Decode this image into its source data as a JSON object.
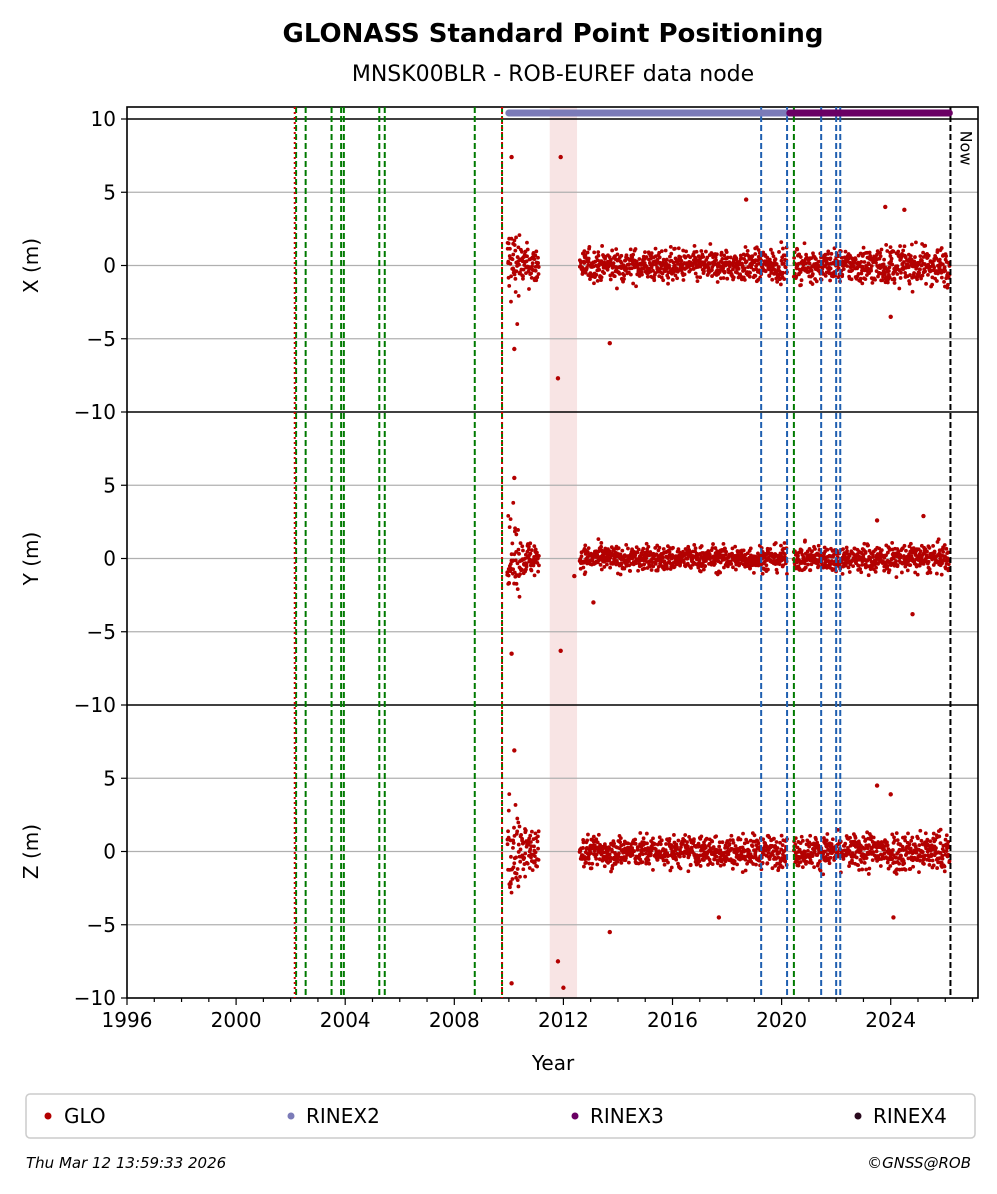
{
  "chart_data": {
    "type": "scatter",
    "title": "GLONASS Standard Point Positioning",
    "subtitle": "MNSK00BLR - ROB-EUREF data node",
    "xlabel": "Year",
    "xlim": [
      1996,
      2027.2
    ],
    "x_ticks": [
      "1996",
      "2000",
      "2004",
      "2008",
      "2012",
      "2016",
      "2020",
      "2024"
    ],
    "x_tick_values": [
      1996,
      2000,
      2004,
      2008,
      2012,
      2016,
      2020,
      2024
    ],
    "now_label": "Now",
    "now_year": 2026.19,
    "panels": [
      {
        "id": "x",
        "ylabel": "X (m)",
        "ylim": [
          -10,
          10
        ],
        "y_ticks": [
          "10",
          "5",
          "0",
          "−5",
          "−10"
        ],
        "y_tick_values": [
          10,
          5,
          0,
          -5,
          -10
        ],
        "noise_mid": 1.0,
        "noise_late": 1.2,
        "early_spread": 2.8,
        "outliers": [
          [
            2010.1,
            7.4
          ],
          [
            2010.2,
            -5.7
          ],
          [
            2011.8,
            -7.7
          ],
          [
            2011.9,
            7.4
          ],
          [
            2013.7,
            -5.3
          ],
          [
            2018.7,
            4.5
          ],
          [
            2023.8,
            4.0
          ],
          [
            2024.5,
            3.8
          ],
          [
            2024.0,
            -3.5
          ]
        ]
      },
      {
        "id": "y",
        "ylabel": "Y (m)",
        "ylim": [
          -10,
          10
        ],
        "y_ticks": [
          "5",
          "0",
          "−5",
          "−10"
        ],
        "y_tick_values": [
          5,
          0,
          -5,
          -10
        ],
        "noise_mid": 0.8,
        "noise_late": 0.9,
        "early_spread": 2.4,
        "outliers": [
          [
            2010.2,
            5.5
          ],
          [
            2010.1,
            -6.5
          ],
          [
            2011.9,
            -6.3
          ],
          [
            2012.4,
            -1.2
          ],
          [
            2013.1,
            -3.0
          ],
          [
            2023.5,
            2.6
          ],
          [
            2024.8,
            -3.8
          ],
          [
            2025.2,
            2.9
          ]
        ]
      },
      {
        "id": "z",
        "ylabel": "Z (m)",
        "ylim": [
          -10,
          10
        ],
        "y_ticks": [
          "5",
          "0",
          "−5",
          "−10"
        ],
        "y_tick_values": [
          5,
          0,
          -5,
          -10
        ],
        "noise_mid": 1.0,
        "noise_late": 1.3,
        "early_spread": 3.2,
        "outliers": [
          [
            2010.2,
            6.9
          ],
          [
            2010.1,
            -9.0
          ],
          [
            2011.8,
            -7.5
          ],
          [
            2012.0,
            -9.3
          ],
          [
            2013.7,
            -5.5
          ],
          [
            2017.7,
            -4.5
          ],
          [
            2023.5,
            4.5
          ],
          [
            2024.0,
            3.9
          ],
          [
            2024.1,
            -4.5
          ]
        ]
      }
    ],
    "data_segments": [
      [
        2009.95,
        2011.1
      ],
      [
        2012.6,
        2020.2
      ],
      [
        2020.45,
        2026.15
      ]
    ],
    "event_lines": {
      "red": [
        2002.15,
        2009.75
      ],
      "green": [
        2002.2,
        2002.55,
        2003.5,
        2003.85,
        2003.95,
        2005.25,
        2005.45,
        2008.75,
        2009.75,
        2020.45
      ],
      "blue": [
        2019.25,
        2020.2,
        2021.45,
        2022.0,
        2022.15
      ]
    },
    "shaded_ranges": [
      [
        2011.5,
        2012.5
      ]
    ],
    "rinex_bars": [
      {
        "name": "RINEX2",
        "start": 2010.0,
        "end": 2020.2,
        "color": "#7b7bb8"
      },
      {
        "name": "RINEX3",
        "start": 2020.3,
        "end": 2026.15,
        "color": "#6a0064"
      }
    ],
    "legend": [
      {
        "label": "GLO",
        "color": "#b30000"
      },
      {
        "label": "RINEX2",
        "color": "#7b7bb8"
      },
      {
        "label": "RINEX3",
        "color": "#6a0064"
      },
      {
        "label": "RINEX4",
        "color": "#2a0a1e"
      }
    ]
  },
  "footer": {
    "timestamp": "Thu Mar 12 13:59:33 2026",
    "credit": "©GNSS@ROB"
  }
}
